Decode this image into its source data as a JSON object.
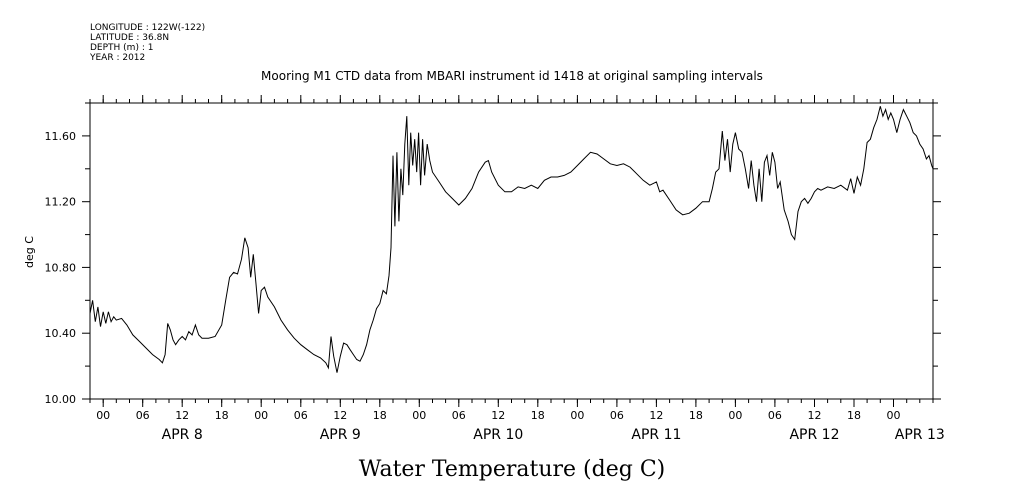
{
  "header": {
    "lines": [
      "LONGITUDE : 122W(-122)",
      "LATITUDE : 36.8N",
      "DEPTH (m) : 1",
      "YEAR : 2012"
    ]
  },
  "chart_data": {
    "type": "line",
    "title": "Mooring M1 CTD data from MBARI instrument id 1418 at original sampling intervals",
    "xlabel": "Water Temperature (deg C)",
    "ylabel": "deg C",
    "ylim": [
      10.0,
      11.8
    ],
    "yticks": [
      10.0,
      10.4,
      10.8,
      11.2,
      11.6
    ],
    "ytick_labels": [
      "10.00",
      "10.40",
      "10.80",
      "11.20",
      "11.60"
    ],
    "xlim_hours": [
      -2,
      126
    ],
    "hour_ticks": [
      {
        "h": 0,
        "label": "00"
      },
      {
        "h": 6,
        "label": "06"
      },
      {
        "h": 12,
        "label": "12"
      },
      {
        "h": 18,
        "label": "18"
      },
      {
        "h": 24,
        "label": "00"
      },
      {
        "h": 30,
        "label": "06"
      },
      {
        "h": 36,
        "label": "12"
      },
      {
        "h": 42,
        "label": "18"
      },
      {
        "h": 48,
        "label": "00"
      },
      {
        "h": 54,
        "label": "06"
      },
      {
        "h": 60,
        "label": "12"
      },
      {
        "h": 66,
        "label": "18"
      },
      {
        "h": 72,
        "label": "00"
      },
      {
        "h": 78,
        "label": "06"
      },
      {
        "h": 84,
        "label": "12"
      },
      {
        "h": 90,
        "label": "18"
      },
      {
        "h": 96,
        "label": "00"
      },
      {
        "h": 102,
        "label": "06"
      },
      {
        "h": 108,
        "label": "12"
      },
      {
        "h": 114,
        "label": "18"
      },
      {
        "h": 120,
        "label": "00"
      }
    ],
    "date_labels": [
      {
        "h": 12,
        "label": "APR  8"
      },
      {
        "h": 36,
        "label": "APR  9"
      },
      {
        "h": 60,
        "label": "APR 10"
      },
      {
        "h": 84,
        "label": "APR 11"
      },
      {
        "h": 108,
        "label": "APR 12"
      },
      {
        "h": 124,
        "label": "APR 13"
      }
    ],
    "grid": false,
    "series": [
      {
        "points": [
          [
            -2.0,
            10.52
          ],
          [
            -1.6,
            10.6
          ],
          [
            -1.2,
            10.47
          ],
          [
            -0.8,
            10.56
          ],
          [
            -0.4,
            10.44
          ],
          [
            0.0,
            10.53
          ],
          [
            0.4,
            10.46
          ],
          [
            0.8,
            10.53
          ],
          [
            1.2,
            10.47
          ],
          [
            1.6,
            10.5
          ],
          [
            2.0,
            10.48
          ],
          [
            2.8,
            10.49
          ],
          [
            3.6,
            10.45
          ],
          [
            4.5,
            10.39
          ],
          [
            5.5,
            10.35
          ],
          [
            6.5,
            10.31
          ],
          [
            7.5,
            10.27
          ],
          [
            8.5,
            10.24
          ],
          [
            9.0,
            10.22
          ],
          [
            9.4,
            10.27
          ],
          [
            9.8,
            10.46
          ],
          [
            10.2,
            10.42
          ],
          [
            10.6,
            10.36
          ],
          [
            11.0,
            10.33
          ],
          [
            11.5,
            10.36
          ],
          [
            12.0,
            10.38
          ],
          [
            12.5,
            10.36
          ],
          [
            13.0,
            10.41
          ],
          [
            13.5,
            10.39
          ],
          [
            14.0,
            10.45
          ],
          [
            14.5,
            10.39
          ],
          [
            15.0,
            10.37
          ],
          [
            16.0,
            10.37
          ],
          [
            17.0,
            10.38
          ],
          [
            18.0,
            10.45
          ],
          [
            18.6,
            10.6
          ],
          [
            19.2,
            10.74
          ],
          [
            19.8,
            10.77
          ],
          [
            20.4,
            10.76
          ],
          [
            21.0,
            10.85
          ],
          [
            21.5,
            10.98
          ],
          [
            22.0,
            10.92
          ],
          [
            22.4,
            10.74
          ],
          [
            22.8,
            10.88
          ],
          [
            23.2,
            10.7
          ],
          [
            23.6,
            10.52
          ],
          [
            24.0,
            10.66
          ],
          [
            24.5,
            10.68
          ],
          [
            25.0,
            10.62
          ],
          [
            26.0,
            10.56
          ],
          [
            27.0,
            10.48
          ],
          [
            28.0,
            10.42
          ],
          [
            29.0,
            10.37
          ],
          [
            30.0,
            10.33
          ],
          [
            31.0,
            10.3
          ],
          [
            32.0,
            10.27
          ],
          [
            33.0,
            10.25
          ],
          [
            33.8,
            10.22
          ],
          [
            34.2,
            10.19
          ],
          [
            34.6,
            10.38
          ],
          [
            35.0,
            10.26
          ],
          [
            35.5,
            10.16
          ],
          [
            36.0,
            10.26
          ],
          [
            36.5,
            10.34
          ],
          [
            37.0,
            10.33
          ],
          [
            37.5,
            10.3
          ],
          [
            38.0,
            10.27
          ],
          [
            38.5,
            10.24
          ],
          [
            39.0,
            10.23
          ],
          [
            39.5,
            10.27
          ],
          [
            40.0,
            10.33
          ],
          [
            40.5,
            10.42
          ],
          [
            41.0,
            10.48
          ],
          [
            41.5,
            10.55
          ],
          [
            42.0,
            10.58
          ],
          [
            42.5,
            10.66
          ],
          [
            43.0,
            10.64
          ],
          [
            43.4,
            10.75
          ],
          [
            43.7,
            10.92
          ],
          [
            44.0,
            11.48
          ],
          [
            44.3,
            11.05
          ],
          [
            44.6,
            11.5
          ],
          [
            44.9,
            11.08
          ],
          [
            45.2,
            11.4
          ],
          [
            45.5,
            11.24
          ],
          [
            45.8,
            11.55
          ],
          [
            46.1,
            11.72
          ],
          [
            46.4,
            11.3
          ],
          [
            46.7,
            11.62
          ],
          [
            47.0,
            11.42
          ],
          [
            47.3,
            11.58
          ],
          [
            47.6,
            11.38
          ],
          [
            47.9,
            11.62
          ],
          [
            48.2,
            11.3
          ],
          [
            48.5,
            11.58
          ],
          [
            48.8,
            11.36
          ],
          [
            49.2,
            11.55
          ],
          [
            49.6,
            11.45
          ],
          [
            50.0,
            11.38
          ],
          [
            51.0,
            11.32
          ],
          [
            52.0,
            11.26
          ],
          [
            53.0,
            11.22
          ],
          [
            54.0,
            11.18
          ],
          [
            55.0,
            11.22
          ],
          [
            56.0,
            11.28
          ],
          [
            57.0,
            11.38
          ],
          [
            58.0,
            11.44
          ],
          [
            58.5,
            11.45
          ],
          [
            59.0,
            11.38
          ],
          [
            60.0,
            11.3
          ],
          [
            61.0,
            11.26
          ],
          [
            62.0,
            11.26
          ],
          [
            63.0,
            11.29
          ],
          [
            64.0,
            11.28
          ],
          [
            65.0,
            11.3
          ],
          [
            66.0,
            11.28
          ],
          [
            67.0,
            11.33
          ],
          [
            68.0,
            11.35
          ],
          [
            69.0,
            11.35
          ],
          [
            70.0,
            11.36
          ],
          [
            71.0,
            11.38
          ],
          [
            72.0,
            11.42
          ],
          [
            73.0,
            11.46
          ],
          [
            74.0,
            11.5
          ],
          [
            75.0,
            11.49
          ],
          [
            76.0,
            11.46
          ],
          [
            77.0,
            11.43
          ],
          [
            78.0,
            11.42
          ],
          [
            79.0,
            11.43
          ],
          [
            80.0,
            11.41
          ],
          [
            81.0,
            11.37
          ],
          [
            82.0,
            11.33
          ],
          [
            83.0,
            11.3
          ],
          [
            84.0,
            11.32
          ],
          [
            84.5,
            11.26
          ],
          [
            85.0,
            11.27
          ],
          [
            86.0,
            11.21
          ],
          [
            87.0,
            11.15
          ],
          [
            88.0,
            11.12
          ],
          [
            89.0,
            11.13
          ],
          [
            90.0,
            11.16
          ],
          [
            91.0,
            11.2
          ],
          [
            92.0,
            11.2
          ],
          [
            92.5,
            11.28
          ],
          [
            93.0,
            11.38
          ],
          [
            93.5,
            11.4
          ],
          [
            94.0,
            11.63
          ],
          [
            94.4,
            11.45
          ],
          [
            94.8,
            11.58
          ],
          [
            95.2,
            11.38
          ],
          [
            95.6,
            11.55
          ],
          [
            96.0,
            11.62
          ],
          [
            96.5,
            11.52
          ],
          [
            97.0,
            11.5
          ],
          [
            97.5,
            11.4
          ],
          [
            98.0,
            11.28
          ],
          [
            98.4,
            11.45
          ],
          [
            98.8,
            11.3
          ],
          [
            99.2,
            11.2
          ],
          [
            99.6,
            11.4
          ],
          [
            100.0,
            11.2
          ],
          [
            100.4,
            11.44
          ],
          [
            100.8,
            11.48
          ],
          [
            101.2,
            11.36
          ],
          [
            101.6,
            11.5
          ],
          [
            102.0,
            11.44
          ],
          [
            102.4,
            11.28
          ],
          [
            102.8,
            11.32
          ],
          [
            103.4,
            11.15
          ],
          [
            104.0,
            11.08
          ],
          [
            104.5,
            11.0
          ],
          [
            105.0,
            10.97
          ],
          [
            105.5,
            11.14
          ],
          [
            106.0,
            11.2
          ],
          [
            106.5,
            11.22
          ],
          [
            107.0,
            11.19
          ],
          [
            107.5,
            11.22
          ],
          [
            108.0,
            11.26
          ],
          [
            108.5,
            11.28
          ],
          [
            109.0,
            11.27
          ],
          [
            110.0,
            11.29
          ],
          [
            111.0,
            11.28
          ],
          [
            112.0,
            11.3
          ],
          [
            113.0,
            11.27
          ],
          [
            113.5,
            11.34
          ],
          [
            114.0,
            11.25
          ],
          [
            114.5,
            11.35
          ],
          [
            115.0,
            11.3
          ],
          [
            115.5,
            11.4
          ],
          [
            116.0,
            11.56
          ],
          [
            116.5,
            11.58
          ],
          [
            117.0,
            11.65
          ],
          [
            117.5,
            11.7
          ],
          [
            118.0,
            11.78
          ],
          [
            118.4,
            11.72
          ],
          [
            118.8,
            11.76
          ],
          [
            119.2,
            11.7
          ],
          [
            119.6,
            11.74
          ],
          [
            120.0,
            11.7
          ],
          [
            120.5,
            11.62
          ],
          [
            121.0,
            11.7
          ],
          [
            121.5,
            11.76
          ],
          [
            122.0,
            11.72
          ],
          [
            122.5,
            11.68
          ],
          [
            123.0,
            11.62
          ],
          [
            123.5,
            11.6
          ],
          [
            124.0,
            11.55
          ],
          [
            124.5,
            11.52
          ],
          [
            125.0,
            11.46
          ],
          [
            125.4,
            11.48
          ],
          [
            125.8,
            11.42
          ],
          [
            126.0,
            11.4
          ]
        ]
      }
    ]
  }
}
